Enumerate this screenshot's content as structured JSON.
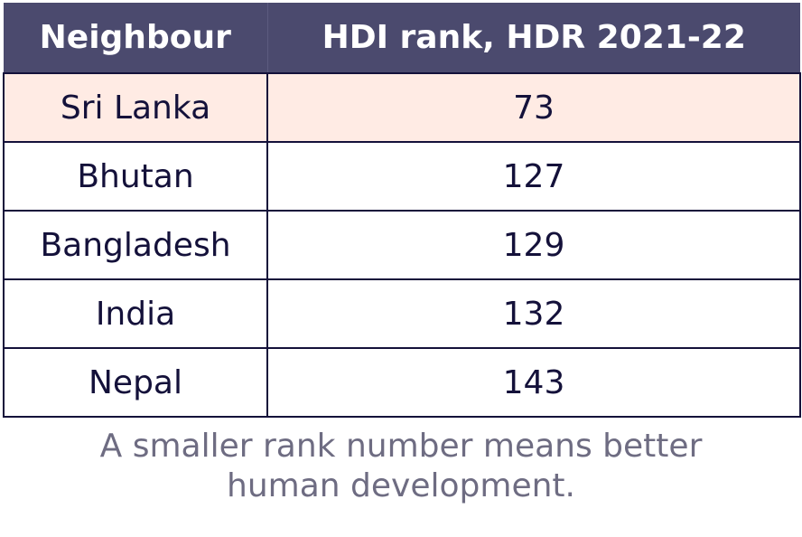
{
  "chart_data": {
    "type": "table",
    "columns": [
      "Neighbour",
      "HDI rank, HDR 2021-22"
    ],
    "rows": [
      {
        "label": "Sri Lanka",
        "value": "73",
        "highlight": true
      },
      {
        "label": "Bhutan",
        "value": "127",
        "highlight": false
      },
      {
        "label": "Bangladesh",
        "value": "129",
        "highlight": false
      },
      {
        "label": "India",
        "value": "132",
        "highlight": false
      },
      {
        "label": "Nepal",
        "value": "143",
        "highlight": false
      }
    ],
    "footnote_lines": [
      "A smaller rank number means better",
      "human development."
    ]
  },
  "colors": {
    "header_bg": "#4b4a6e",
    "header_text": "#ffffff",
    "highlight_row": "#ffebe4",
    "border": "#14113a",
    "footnote_text": "#6e6c82"
  }
}
